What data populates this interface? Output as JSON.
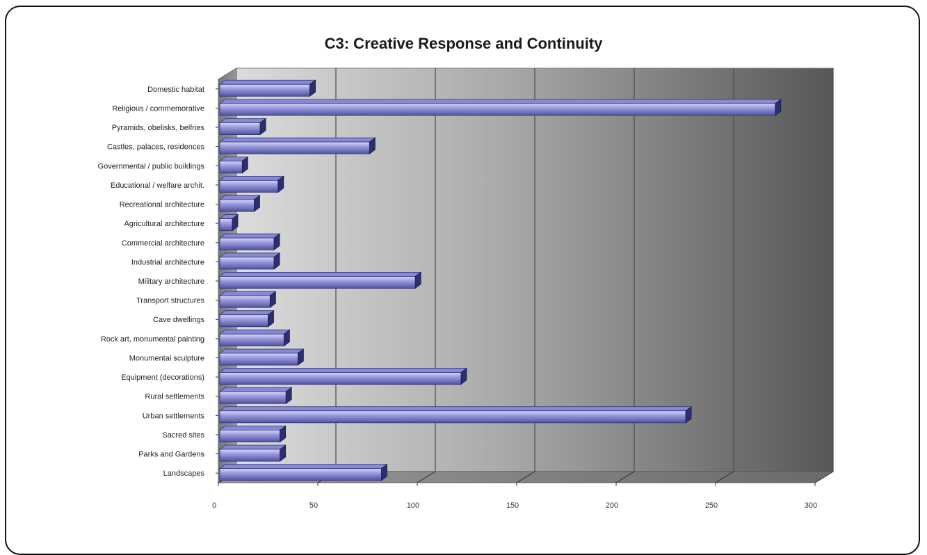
{
  "chart_data": {
    "type": "bar",
    "orientation": "horizontal",
    "three_d": true,
    "title": "C3: Creative Response and Continuity",
    "categories": [
      "Domestic habitat",
      "Religious / commemorative",
      "Pyramids, obelisks, belfries",
      "Castles, palaces, residences",
      "Governmental / public buildings",
      "Educational / welfare archit.",
      "Recreational architecture",
      "Agricultural architecture",
      "Commercial architecture",
      "Industrial architecture",
      "Military architecture",
      "Transport structures",
      "Cave dwellings",
      "Rock art, monumental painting",
      "Monumental sculpture",
      "Equipment (decorations)",
      "Rural settlements",
      "Urban settlements",
      "Sacred sites",
      "Parks and Gardens",
      "Landscapes"
    ],
    "values": [
      46,
      280,
      21,
      76,
      12,
      30,
      18,
      7,
      28,
      28,
      99,
      26,
      25,
      33,
      40,
      122,
      34,
      235,
      31,
      31,
      82
    ],
    "xlim": [
      0,
      300
    ],
    "xticks": [
      "0",
      "50",
      "100",
      "150",
      "200",
      "250",
      "300"
    ],
    "xlabel": "",
    "ylabel": "",
    "grid": true,
    "legend": "none",
    "colors": {
      "bar_light": "#b7b8ee",
      "bar_mid": "#7d7fc8",
      "bar_dark": "#2a2c6e",
      "back_wall_light": "#d9d9d9",
      "back_wall_dark": "#5a5a5a",
      "floor": "#8a8a8a"
    }
  }
}
